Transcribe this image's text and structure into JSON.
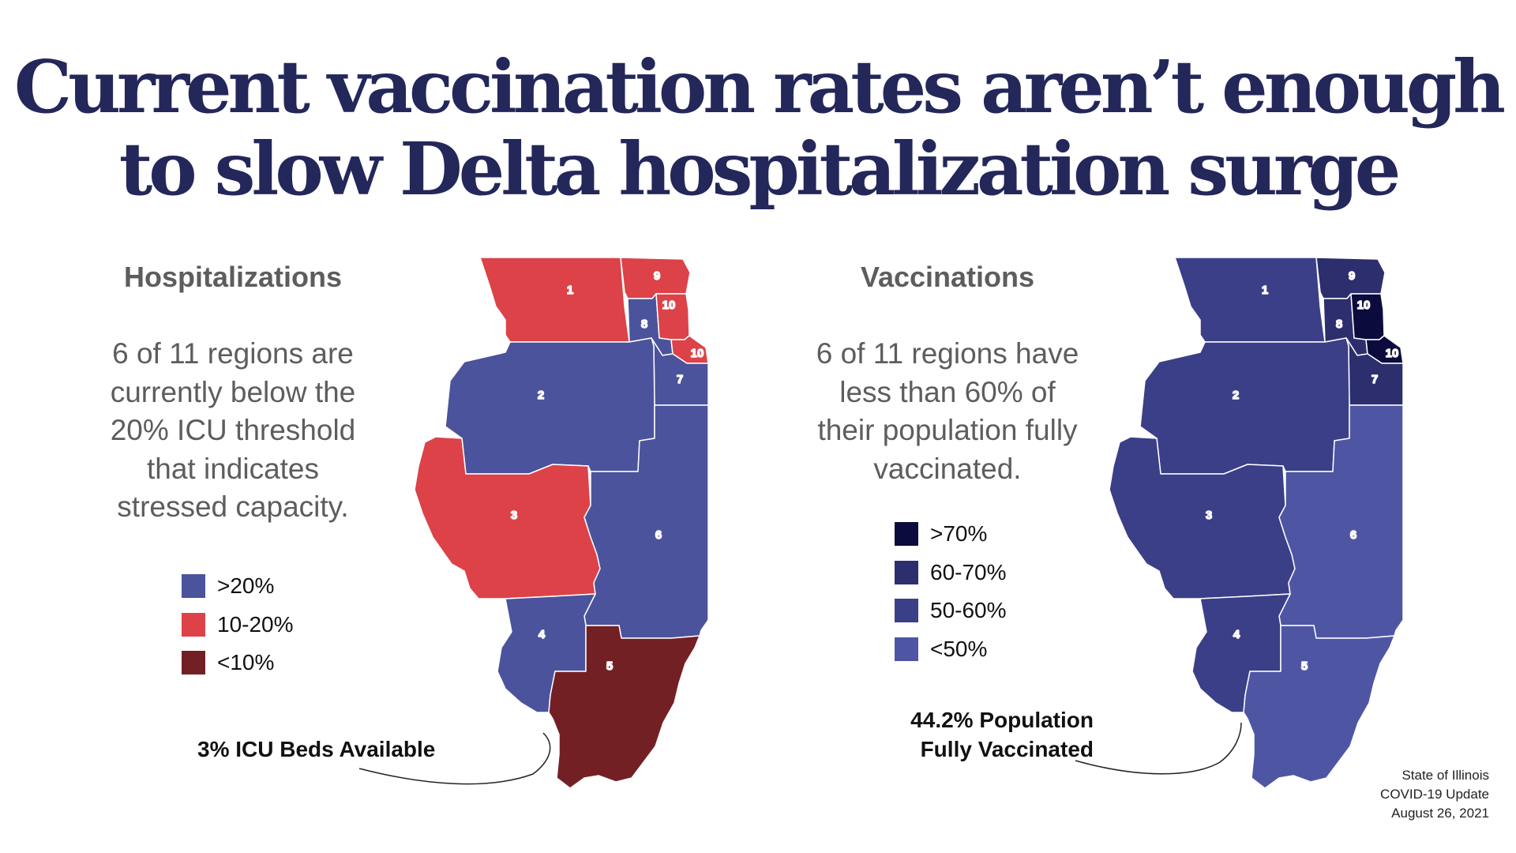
{
  "headline": {
    "line1": "Current vaccination rates aren’t enough",
    "line2": "to slow Delta hospitalization surge"
  },
  "hospitalizations": {
    "title": "Hospitalizations",
    "blurb": [
      "6 of 11 regions are",
      "currently below the",
      "20% ICU threshold",
      "that indicates",
      "stressed capacity."
    ],
    "legend": [
      {
        "label": ">20%",
        "color": "#4b539c"
      },
      {
        "label": "10-20%",
        "color": "#dc4248"
      },
      {
        "label": "<10%",
        "color": "#732024"
      }
    ],
    "callout": "3% ICU Beds Available",
    "region_labels": [
      "1",
      "2",
      "3",
      "4",
      "5",
      "6",
      "7",
      "8",
      "9",
      "10",
      "10"
    ]
  },
  "vaccinations": {
    "title": "Vaccinations",
    "blurb": [
      "6 of 11 regions have",
      "less than 60% of",
      "their population fully",
      "vaccinated."
    ],
    "legend": [
      {
        "label": ">70%",
        "color": "#0b0b3d"
      },
      {
        "label": "60-70%",
        "color": "#2c2e6e"
      },
      {
        "label": "50-60%",
        "color": "#3b3f88"
      },
      {
        "label": "<50%",
        "color": "#4e56a4"
      }
    ],
    "callout": [
      "44.2% Population",
      "Fully Vaccinated"
    ],
    "region_labels": [
      "1",
      "2",
      "3",
      "4",
      "5",
      "6",
      "7",
      "8",
      "9",
      "10",
      "10"
    ]
  },
  "source": [
    "State of Illinois",
    "COVID-19 Update",
    "August 26, 2021"
  ]
}
